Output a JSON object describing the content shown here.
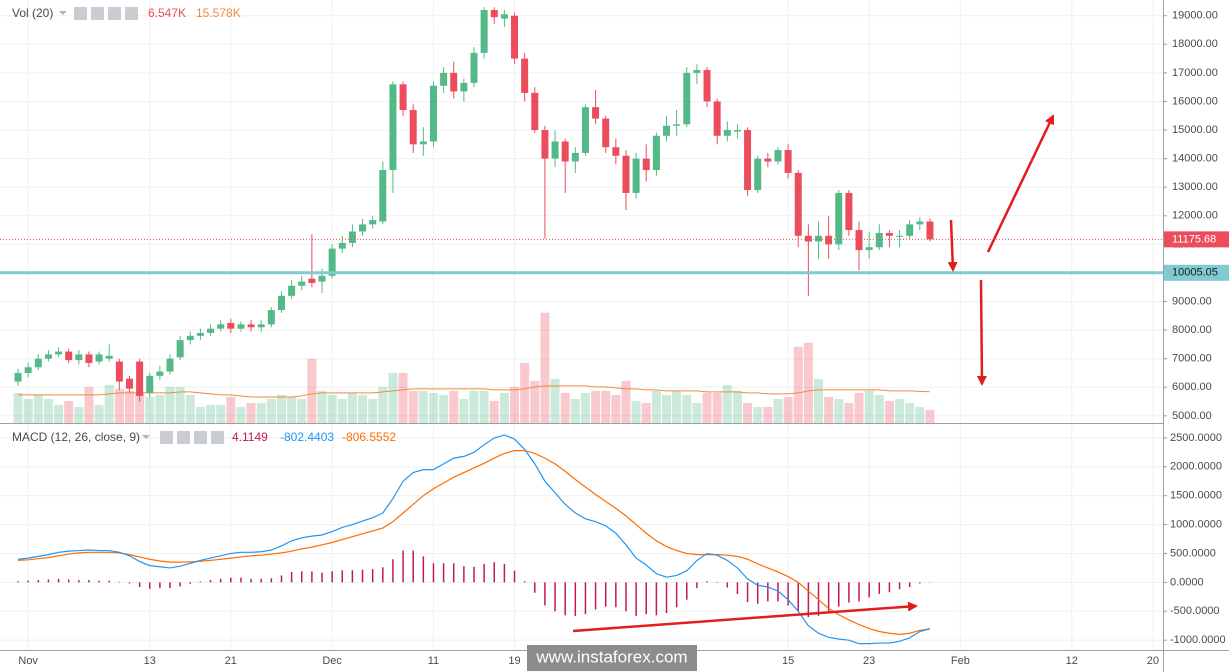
{
  "chart_data": {
    "type": "candlestick",
    "grid": true,
    "up_color": "#53b987",
    "down_color": "#eb4d5c",
    "xlim": [
      -1.78,
      113
    ],
    "xticks": [
      {
        "value": 1,
        "label": "Nov"
      },
      {
        "value": 13,
        "label": "13"
      },
      {
        "value": 21,
        "label": "21"
      },
      {
        "value": 31,
        "label": "Dec"
      },
      {
        "value": 41,
        "label": "11"
      },
      {
        "value": 49,
        "label": "19"
      },
      {
        "value": 76,
        "label": "15"
      },
      {
        "value": 84,
        "label": "23"
      },
      {
        "value": 93,
        "label": "Feb"
      },
      {
        "value": 104,
        "label": "12"
      },
      {
        "value": 112,
        "label": "20"
      }
    ],
    "ylim": [
      4750,
      19550
    ],
    "yticks": [
      {
        "value": 5000,
        "label": "5000.00"
      },
      {
        "value": 6000,
        "label": "6000.00"
      },
      {
        "value": 7000,
        "label": "7000.00"
      },
      {
        "value": 8000,
        "label": "8000.00"
      },
      {
        "value": 9000,
        "label": "9000.00"
      },
      {
        "value": 10000,
        "label": "10000.00"
      },
      {
        "value": 11000,
        "label": "11000.00"
      },
      {
        "value": 12000,
        "label": "12000.00"
      },
      {
        "value": 13000,
        "label": "13000.00"
      },
      {
        "value": 14000,
        "label": "14000.00"
      },
      {
        "value": 15000,
        "label": "15000.00"
      },
      {
        "value": 16000,
        "label": "16000.00"
      },
      {
        "value": 17000,
        "label": "17000.00"
      },
      {
        "value": 18000,
        "label": "18000.00"
      },
      {
        "value": 19000,
        "label": "19000.00"
      }
    ],
    "open": [
      6200,
      6500,
      6700,
      7000,
      7150,
      7250,
      6950,
      7150,
      6900,
      7000,
      6900,
      6300,
      6900,
      5800,
      6400,
      6550,
      7050,
      7650,
      7800,
      7900,
      8050,
      8250,
      8050,
      8200,
      8100,
      8200,
      8700,
      9200,
      9550,
      9800,
      9700,
      9900,
      10850,
      11050,
      11450,
      11700,
      11800,
      13600,
      16600,
      15700,
      14500,
      14600,
      16550,
      17000,
      16350,
      16650,
      17700,
      19200,
      18900,
      19000,
      17500,
      16300,
      15000,
      14000,
      14600,
      13900,
      14200,
      15800,
      15400,
      14400,
      14100,
      12800,
      14000,
      13600,
      14800,
      15150,
      15200,
      17000,
      17100,
      16000,
      14800,
      14950,
      15000,
      12900,
      14000,
      13900,
      14300,
      13500,
      11300,
      11100,
      11300,
      11000,
      12800,
      11500,
      10800,
      10900,
      11400,
      11300,
      11300,
      11700,
      11800
    ],
    "high": [
      6650,
      6850,
      7150,
      7300,
      7400,
      7350,
      7300,
      7250,
      7250,
      7500,
      7000,
      6400,
      7000,
      6500,
      6750,
      7150,
      7800,
      7950,
      8050,
      8200,
      8350,
      8400,
      8300,
      8350,
      8350,
      8800,
      9350,
      9750,
      9900,
      11350,
      10150,
      11000,
      11300,
      11700,
      11900,
      12000,
      13900,
      16700,
      16700,
      15900,
      15100,
      16700,
      17200,
      17400,
      16800,
      17900,
      19300,
      19300,
      19200,
      19100,
      17700,
      16500,
      15150,
      15000,
      14700,
      14400,
      15900,
      16400,
      15500,
      14700,
      14300,
      14200,
      14500,
      14900,
      15500,
      15700,
      17200,
      17300,
      17200,
      16100,
      15300,
      15200,
      15100,
      14100,
      14200,
      14400,
      14500,
      13600,
      11700,
      11800,
      12000,
      12900,
      12900,
      11800,
      11450,
      11700,
      11500,
      11500,
      11850,
      11950,
      11900
    ],
    "low": [
      6050,
      6350,
      6600,
      6900,
      7050,
      6850,
      6800,
      6700,
      6800,
      6900,
      5900,
      5800,
      5500,
      5650,
      6250,
      6450,
      6950,
      7500,
      7650,
      7800,
      7950,
      7900,
      7950,
      7950,
      7950,
      8100,
      8600,
      9100,
      9400,
      9500,
      9300,
      9800,
      10700,
      10900,
      11300,
      11550,
      11700,
      12800,
      15500,
      14200,
      14100,
      14400,
      16300,
      16100,
      16000,
      16500,
      17500,
      18700,
      18600,
      17300,
      16000,
      14900,
      11200,
      13700,
      12800,
      13500,
      14100,
      15200,
      14200,
      13800,
      12200,
      12600,
      13200,
      13400,
      14600,
      14800,
      15100,
      16600,
      15800,
      14500,
      14600,
      14700,
      12700,
      12800,
      13700,
      13800,
      13300,
      10900,
      9200,
      10500,
      10500,
      10800,
      11300,
      10100,
      10500,
      10800,
      10900,
      10900,
      11200,
      11500,
      11100
    ],
    "close": [
      6500,
      6700,
      7000,
      7150,
      7250,
      6950,
      7150,
      6850,
      7150,
      7100,
      6200,
      5950,
      5700,
      6400,
      6550,
      7000,
      7650,
      7800,
      7900,
      8050,
      8200,
      8050,
      8200,
      8100,
      8200,
      8700,
      9200,
      9550,
      9700,
      9650,
      9900,
      10850,
      11050,
      11450,
      11700,
      11850,
      13600,
      16600,
      15700,
      14500,
      14600,
      16550,
      17000,
      16350,
      16650,
      17700,
      19200,
      18950,
      19050,
      17500,
      16300,
      15000,
      14000,
      14600,
      13900,
      14200,
      15800,
      15400,
      14400,
      14100,
      12800,
      14000,
      13600,
      14800,
      15150,
      15200,
      17000,
      17100,
      16000,
      14800,
      15000,
      15000,
      12900,
      14000,
      13900,
      14300,
      13500,
      11300,
      11100,
      11300,
      11000,
      12800,
      11500,
      10800,
      10900,
      11400,
      11300,
      11300,
      11700,
      11800,
      11175.68
    ],
    "levels": [
      {
        "value": 10005.05,
        "color": "#7fcad3"
      }
    ],
    "volume": {
      "title": "Vol (20)",
      "ylim": [
        0,
        211
      ],
      "ma_color": "#f08a3c",
      "values": [
        15,
        12,
        14,
        12,
        9,
        11,
        8,
        18,
        9,
        19,
        17,
        16,
        15,
        13,
        14,
        18,
        18,
        14,
        8,
        9,
        9,
        13,
        8,
        10,
        10,
        12,
        14,
        13,
        12,
        32,
        16,
        14,
        12,
        15,
        14,
        12,
        18,
        25,
        25,
        16,
        16,
        15,
        14,
        16,
        12,
        16,
        16,
        11,
        15,
        18,
        30,
        21,
        55,
        22,
        15,
        12,
        15,
        16,
        16,
        14,
        21,
        11,
        10,
        16,
        14,
        16,
        14,
        10,
        15,
        15,
        19,
        16,
        10,
        8,
        8,
        12,
        13,
        38,
        40,
        22,
        13,
        12,
        10,
        15,
        16,
        14,
        11,
        12,
        10,
        8,
        6.547
      ],
      "ma": [
        14,
        14,
        14,
        14,
        14,
        14,
        14,
        14,
        14,
        14.5,
        15,
        15,
        15,
        15,
        15,
        15,
        15.5,
        15.5,
        15,
        14.5,
        14,
        14,
        13.5,
        13,
        13,
        13,
        13,
        13,
        13.5,
        14.5,
        15,
        15,
        15,
        15,
        15,
        15,
        15.5,
        16,
        16.5,
        17,
        17,
        17,
        17,
        17,
        17,
        17,
        17,
        16.5,
        16.5,
        16.5,
        17,
        18,
        18.5,
        18.5,
        18.5,
        18.5,
        18.5,
        18,
        18,
        17.5,
        17,
        17,
        16.5,
        16.5,
        16,
        16,
        16,
        16,
        15.5,
        15.5,
        15.5,
        15.5,
        15,
        15,
        14.5,
        14.5,
        14.5,
        15,
        16,
        16.5,
        16.5,
        16.5,
        16.5,
        16.5,
        16.5,
        16.5,
        16,
        16,
        16,
        15.8,
        15.578
      ],
      "last_label": "6.547K",
      "ma_last_label": "15.578K"
    },
    "macd": {
      "title": "MACD (12, 26, close, 9)",
      "ylim": [
        -1170,
        2740
      ],
      "yticks": [
        {
          "value": -1000,
          "label": "-1000.0000"
        },
        {
          "value": -500,
          "label": "-500.0000"
        },
        {
          "value": 0,
          "label": "0.0000"
        },
        {
          "value": 500,
          "label": "500.0000"
        },
        {
          "value": 1000,
          "label": "1000.0000"
        },
        {
          "value": 1500,
          "label": "1500.0000"
        },
        {
          "value": 2000,
          "label": "2000.0000"
        },
        {
          "value": 2500,
          "label": "2500.0000"
        }
      ],
      "histogram_color": "#c2185b",
      "macd_color": "#2196f3",
      "signal_color": "#ff6d00",
      "macd": [
        400,
        420,
        450,
        480,
        520,
        540,
        550,
        560,
        550,
        550,
        520,
        460,
        360,
        290,
        270,
        250,
        280,
        330,
        380,
        420,
        460,
        500,
        520,
        520,
        530,
        560,
        630,
        720,
        770,
        800,
        820,
        880,
        950,
        1000,
        1060,
        1120,
        1200,
        1450,
        1750,
        1900,
        1950,
        1950,
        2050,
        2150,
        2180,
        2250,
        2380,
        2500,
        2550,
        2480,
        2300,
        2050,
        1750,
        1550,
        1350,
        1200,
        1100,
        1050,
        980,
        850,
        650,
        420,
        300,
        150,
        90,
        120,
        200,
        380,
        500,
        470,
        380,
        250,
        60,
        -50,
        -80,
        -150,
        -300,
        -500,
        -750,
        -880,
        -950,
        -980,
        -1000,
        -1060,
        -1060,
        -1050,
        -1050,
        -1020,
        -960,
        -850,
        -802.4403
      ],
      "signal": [
        380,
        390,
        410,
        430,
        460,
        490,
        510,
        520,
        520,
        520,
        510,
        480,
        440,
        400,
        370,
        350,
        350,
        355,
        365,
        380,
        400,
        420,
        440,
        460,
        470,
        490,
        510,
        540,
        580,
        610,
        650,
        690,
        740,
        790,
        840,
        890,
        940,
        1050,
        1200,
        1350,
        1500,
        1620,
        1720,
        1820,
        1900,
        1980,
        2060,
        2150,
        2230,
        2280,
        2280,
        2230,
        2150,
        2050,
        1920,
        1780,
        1650,
        1520,
        1400,
        1280,
        1150,
        1000,
        850,
        720,
        620,
        550,
        500,
        480,
        480,
        480,
        470,
        450,
        400,
        320,
        250,
        180,
        100,
        0,
        -150,
        -300,
        -450,
        -560,
        -650,
        -730,
        -800,
        -850,
        -880,
        -900,
        -880,
        -830,
        -806.5552
      ],
      "histogram": [
        20,
        30,
        40,
        50,
        60,
        50,
        40,
        40,
        30,
        30,
        10,
        -20,
        -80,
        -110,
        -100,
        -100,
        -70,
        -25,
        15,
        40,
        60,
        80,
        80,
        60,
        60,
        70,
        120,
        180,
        190,
        190,
        170,
        190,
        210,
        210,
        220,
        230,
        260,
        400,
        550,
        550,
        450,
        330,
        330,
        330,
        280,
        270,
        320,
        350,
        320,
        200,
        20,
        -180,
        -400,
        -500,
        -570,
        -580,
        -550,
        -470,
        -420,
        -430,
        -500,
        -580,
        -550,
        -570,
        -530,
        -430,
        -300,
        -100,
        20,
        -10,
        -90,
        -200,
        -340,
        -370,
        -330,
        -330,
        -400,
        -500,
        -600,
        -580,
        -500,
        -420,
        -350,
        -330,
        -260,
        -200,
        -170,
        -120,
        -80,
        -20,
        4.1149
      ]
    },
    "watermark": "www.instaforex.com"
  }
}
